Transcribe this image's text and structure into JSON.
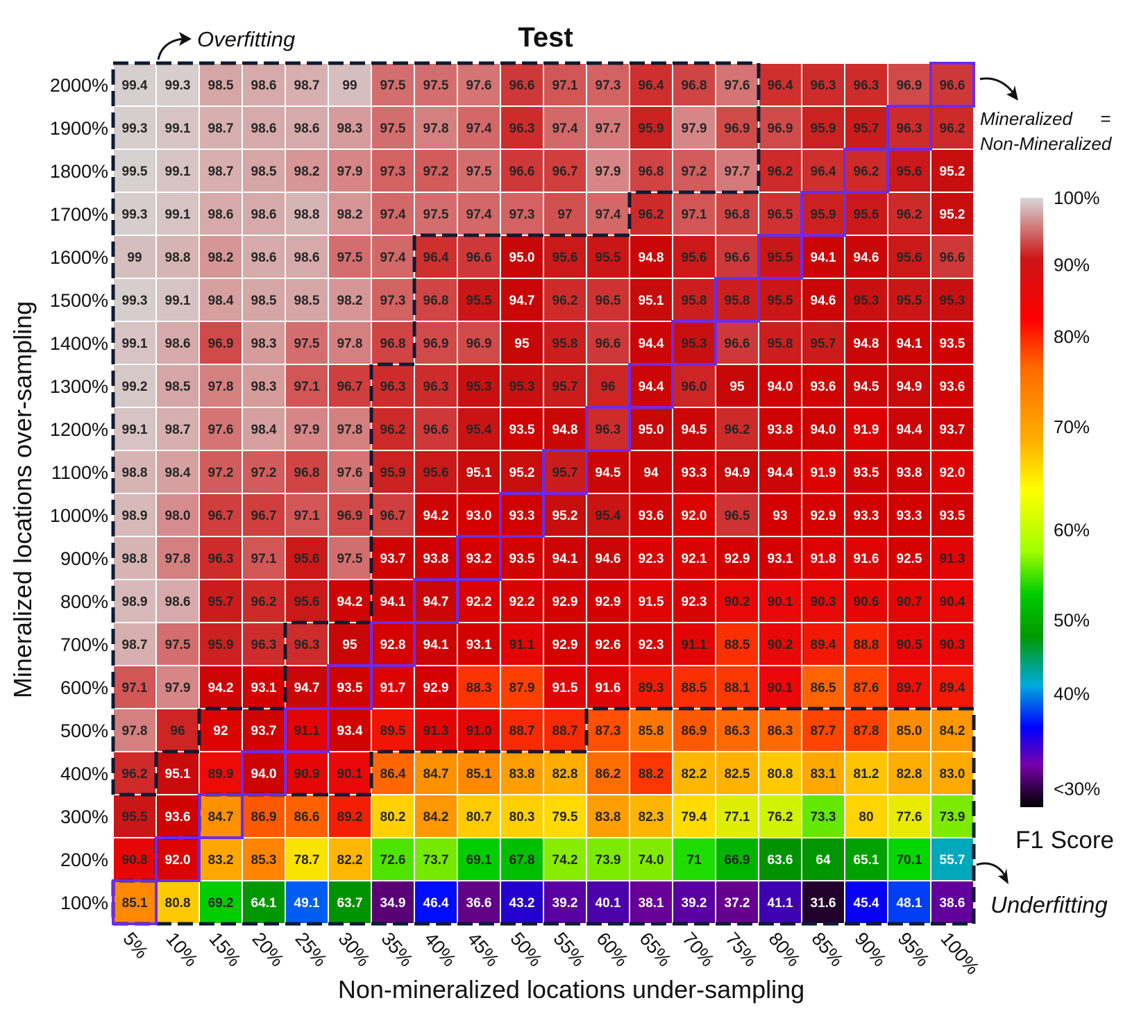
{
  "chart_data": {
    "type": "heatmap",
    "title": "Test",
    "xlabel": "Non-mineralized locations under-sampling",
    "ylabel": "Mineralized locations over-sampling",
    "x_categories": [
      "5%",
      "10%",
      "15%",
      "20%",
      "25%",
      "30%",
      "35%",
      "40%",
      "45%",
      "50%",
      "55%",
      "60%",
      "65%",
      "70%",
      "75%",
      "80%",
      "85%",
      "90%",
      "95%",
      "100%"
    ],
    "y_categories": [
      "2000%",
      "1900%",
      "1800%",
      "1700%",
      "1600%",
      "1500%",
      "1400%",
      "1300%",
      "1200%",
      "1100%",
      "1000%",
      "900%",
      "800%",
      "700%",
      "600%",
      "500%",
      "400%",
      "300%",
      "200%",
      "100%"
    ],
    "cells": [
      [
        "99.4",
        "99.3",
        "98.5",
        "98.6",
        "98.7",
        "99",
        "97.5",
        "97.5",
        "97.6",
        "96.6",
        "97.1",
        "97.3",
        "96.4",
        "96.8",
        "97.6",
        "96.4",
        "96.3",
        "96.3",
        "96.9",
        "96.6"
      ],
      [
        "99.3",
        "99.1",
        "98.7",
        "98.6",
        "98.6",
        "98.3",
        "97.5",
        "97.8",
        "97.4",
        "96.3",
        "97.4",
        "97.7",
        "95.9",
        "97.9",
        "96.9",
        "96.9",
        "95.9",
        "95.7",
        "96.3",
        "96.2"
      ],
      [
        "99.5",
        "99.1",
        "98.7",
        "98.5",
        "98.2",
        "97.9",
        "97.3",
        "97.2",
        "97.5",
        "96.6",
        "96.7",
        "97.9",
        "96.8",
        "97.2",
        "97.7",
        "96.2",
        "96.4",
        "96.2",
        "95.6",
        "95.2"
      ],
      [
        "99.3",
        "99.1",
        "98.6",
        "98.6",
        "98.8",
        "98.2",
        "97.4",
        "97.5",
        "97.4",
        "97.3",
        "97",
        "97.4",
        "96.2",
        "97.1",
        "96.8",
        "96.5",
        "95.9",
        "95.6",
        "96.2",
        "95.2"
      ],
      [
        "99",
        "98.8",
        "98.2",
        "98.6",
        "98.6",
        "97.5",
        "97.4",
        "96.4",
        "96.6",
        "95.0",
        "95.6",
        "95.5",
        "94.8",
        "95.6",
        "96.6",
        "95.5",
        "94.1",
        "94.6",
        "95.6",
        "96.6"
      ],
      [
        "99.3",
        "99.1",
        "98.4",
        "98.5",
        "98.5",
        "98.2",
        "97.3",
        "96.8",
        "95.5",
        "94.7",
        "96.2",
        "96.5",
        "95.1",
        "95.8",
        "95.8",
        "95.5",
        "94.6",
        "95.3",
        "95.5",
        "95.3"
      ],
      [
        "99.1",
        "98.6",
        "96.9",
        "98.3",
        "97.5",
        "97.8",
        "96.8",
        "96.9",
        "96.9",
        "95",
        "95.8",
        "96.6",
        "94.4",
        "95.3",
        "96.6",
        "95.8",
        "95.7",
        "94.8",
        "94.1",
        "93.5"
      ],
      [
        "99.2",
        "98.5",
        "97.8",
        "98.3",
        "97.1",
        "96.7",
        "96.3",
        "96.3",
        "95.3",
        "95.3",
        "95.7",
        "96",
        "94.4",
        "96.0",
        "95",
        "94.0",
        "93.6",
        "94.5",
        "94.9",
        "93.6"
      ],
      [
        "99.1",
        "98.7",
        "97.6",
        "98.4",
        "97.9",
        "97.8",
        "96.2",
        "96.6",
        "95.4",
        "93.5",
        "94.8",
        "96.3",
        "95.0",
        "94.5",
        "96.2",
        "93.8",
        "94.0",
        "91.9",
        "94.4",
        "93.7"
      ],
      [
        "98.8",
        "98.4",
        "97.2",
        "97.2",
        "96.8",
        "97.6",
        "95.9",
        "95.6",
        "95.1",
        "95.2",
        "95.7",
        "94.5",
        "94",
        "93.3",
        "94.9",
        "94.4",
        "91.9",
        "93.5",
        "93.8",
        "92.0"
      ],
      [
        "98.9",
        "98.0",
        "96.7",
        "96.7",
        "97.1",
        "96.9",
        "96.7",
        "94.2",
        "93.0",
        "93.3",
        "95.2",
        "95.4",
        "93.6",
        "92.0",
        "96.5",
        "93",
        "92.9",
        "93.3",
        "93.3",
        "93.5"
      ],
      [
        "98.8",
        "97.8",
        "96.3",
        "97.1",
        "95.6",
        "97.5",
        "93.7",
        "93.8",
        "93.2",
        "93.5",
        "94.1",
        "94.6",
        "92.3",
        "92.1",
        "92.9",
        "93.1",
        "91.8",
        "91.6",
        "92.5",
        "91.3"
      ],
      [
        "98.9",
        "98.6",
        "95.7",
        "96.2",
        "95.6",
        "94.2",
        "94.1",
        "94.7",
        "92.2",
        "92.2",
        "92.9",
        "92.9",
        "91.5",
        "92.3",
        "90.2",
        "90.1",
        "90.3",
        "90.6",
        "90.7",
        "90.4"
      ],
      [
        "98.7",
        "97.5",
        "95.9",
        "96.3",
        "96.3",
        "95",
        "92.8",
        "94.1",
        "93.1",
        "91.1",
        "92.9",
        "92.6",
        "92.3",
        "91.1",
        "88.5",
        "90.2",
        "89.4",
        "88.8",
        "90.5",
        "90.3"
      ],
      [
        "97.1",
        "97.9",
        "94.2",
        "93.1",
        "94.7",
        "93.5",
        "91.7",
        "92.9",
        "88.3",
        "87.9",
        "91.5",
        "91.6",
        "89.3",
        "88.5",
        "88.1",
        "90.1",
        "86.5",
        "87.6",
        "89.7",
        "89.4"
      ],
      [
        "97.8",
        "96",
        "92",
        "93.7",
        "91.1",
        "93.4",
        "89.5",
        "91.3",
        "91.0",
        "88.7",
        "88.7",
        "87.3",
        "85.8",
        "86.9",
        "86.3",
        "86.3",
        "87.7",
        "87.8",
        "85.0",
        "84.2"
      ],
      [
        "96.2",
        "95.1",
        "89.9",
        "94.0",
        "90.9",
        "90.1",
        "86.4",
        "84.7",
        "85.1",
        "83.8",
        "82.8",
        "86.2",
        "88.2",
        "82.2",
        "82.5",
        "80.8",
        "83.1",
        "81.2",
        "82.8",
        "83.0"
      ],
      [
        "95.5",
        "93.6",
        "84.7",
        "86.9",
        "86.6",
        "89.2",
        "80.2",
        "84.2",
        "80.7",
        "80.3",
        "79.5",
        "83.8",
        "82.3",
        "79.4",
        "77.1",
        "76.2",
        "73.3",
        "80",
        "77.6",
        "73.9"
      ],
      [
        "90.8",
        "92.0",
        "83.2",
        "85.3",
        "78.7",
        "82.2",
        "72.6",
        "73.7",
        "69.1",
        "67.8",
        "74.2",
        "73.9",
        "74.0",
        "71",
        "66.9",
        "63.6",
        "64",
        "65.1",
        "70.1",
        "55.7"
      ],
      [
        "85.1",
        "80.8",
        "69.2",
        "64.1",
        "49.1",
        "63.7",
        "34.9",
        "46.4",
        "36.6",
        "43.2",
        "39.2",
        "40.1",
        "38.1",
        "39.2",
        "37.2",
        "41.1",
        "31.6",
        "45.4",
        "48.1",
        "38.6"
      ]
    ],
    "colorbar": {
      "title": "F1 Score",
      "ticks": [
        "100%",
        "90%",
        "80%",
        "70%",
        "60%",
        "50%",
        "40%",
        "<30%"
      ],
      "scale_min": 30,
      "scale_max": 100
    },
    "annotations": {
      "overfitting": "Overfitting",
      "underfitting": "Underfitting",
      "diagonal_line1": "Mineralized",
      "diagonal_eq": "=",
      "diagonal_line2": "Non-Mineralized"
    },
    "colors": {
      "region_outline": "#0d1b33",
      "diagonal_outline": "#6a2cf0"
    }
  }
}
